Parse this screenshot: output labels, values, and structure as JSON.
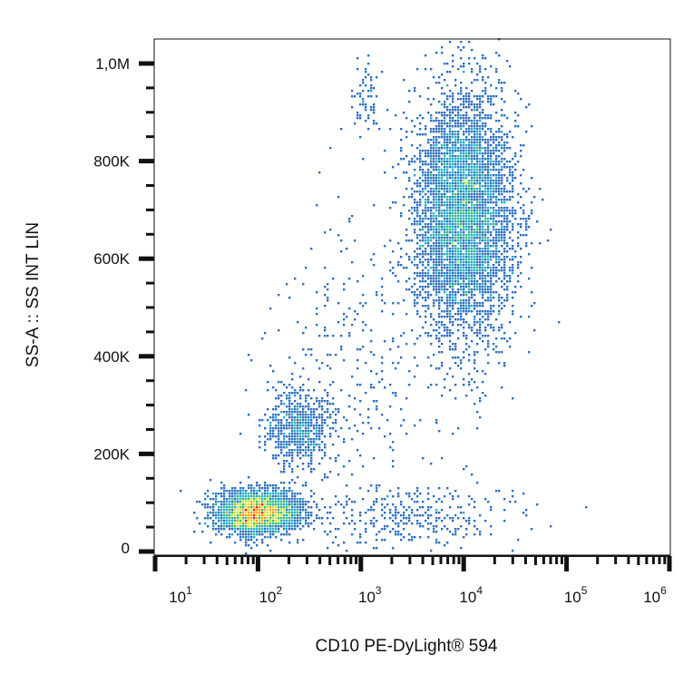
{
  "chart_data": {
    "type": "heatmap",
    "subtype": "flow-cytometry density dot plot",
    "xlabel": "CD10  PE-DyLight® 594",
    "ylabel": "SS-A :: SS INT LIN",
    "x_scale": "log",
    "xlim": [
      10,
      1000000
    ],
    "ylim": [
      -10000,
      1050000
    ],
    "x_ticks": [
      {
        "value": 10,
        "base": "10",
        "exp": "1"
      },
      {
        "value": 100,
        "base": "10",
        "exp": "2"
      },
      {
        "value": 1000,
        "base": "10",
        "exp": "3"
      },
      {
        "value": 10000,
        "base": "10",
        "exp": "4"
      },
      {
        "value": 100000,
        "base": "10",
        "exp": "5"
      },
      {
        "value": 1000000,
        "base": "10",
        "exp": "6"
      }
    ],
    "y_ticks": [
      {
        "value": 0,
        "label": "0"
      },
      {
        "value": 200000,
        "label": "200K"
      },
      {
        "value": 400000,
        "label": "400K"
      },
      {
        "value": 600000,
        "label": "600K"
      },
      {
        "value": 800000,
        "label": "800K"
      },
      {
        "value": 1000000,
        "label": "1,0M"
      }
    ],
    "color_scale": [
      "#2b3a9a",
      "#2f6fc0",
      "#27b0c8",
      "#3cbf6a",
      "#d6e63a",
      "#f7a21b",
      "#e4231f"
    ],
    "populations": [
      {
        "x_center": 10000,
        "x_log_sd": 0.24,
        "y_center": 690000,
        "y_sd": 125000,
        "events": 5200
      },
      {
        "x_center": 100,
        "x_log_sd": 0.2,
        "y_center": 80000,
        "y_sd": 22000,
        "events": 3000
      },
      {
        "x_center": 250,
        "x_log_sd": 0.16,
        "y_center": 255000,
        "y_sd": 40000,
        "events": 700
      },
      {
        "x_center": 1100,
        "x_log_sd": 0.08,
        "y_center": 920000,
        "y_sd": 40000,
        "events": 70
      },
      {
        "x_center": 3000,
        "x_log_sd": 0.5,
        "y_center": 70000,
        "y_sd": 35000,
        "events": 350
      },
      {
        "x_center": 1000,
        "x_log_sd": 0.45,
        "y_center": 400000,
        "y_sd": 150000,
        "events": 300
      }
    ]
  }
}
